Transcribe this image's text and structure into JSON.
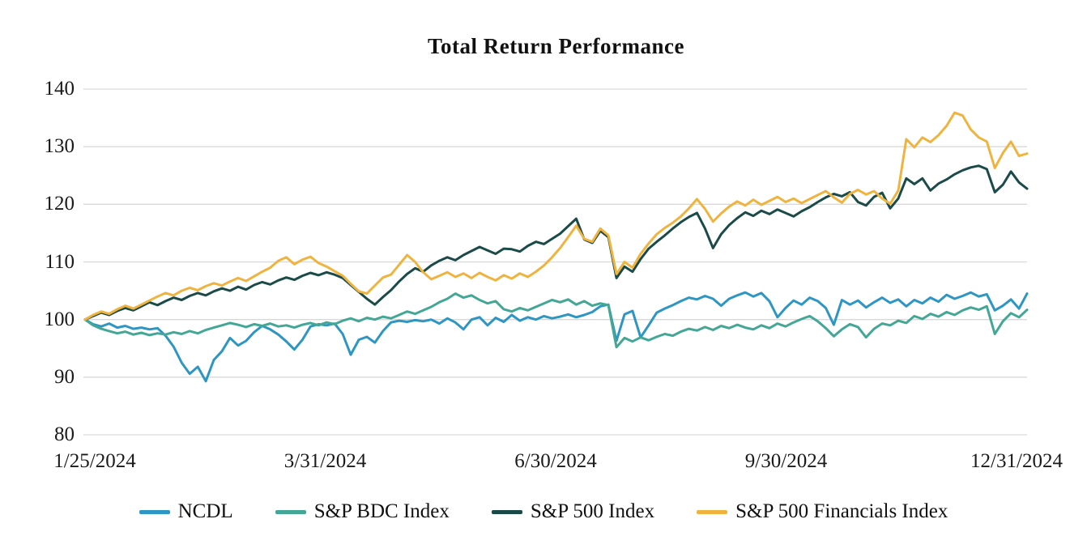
{
  "chart": {
    "background": "#ffffff",
    "gridline_color": "#d9d9d9",
    "text_color": "#1a1a1a"
  },
  "chart_data": {
    "type": "line",
    "title": "Total Return Performance",
    "xlabel": "",
    "ylabel": "",
    "ylim": [
      80,
      140
    ],
    "y_ticks": [
      80,
      90,
      100,
      110,
      120,
      130,
      140
    ],
    "x_tick_labels": [
      "1/25/2024",
      "3/31/2024",
      "6/30/2024",
      "9/30/2024",
      "12/31/2024"
    ],
    "grid": "horizontal",
    "legend_position": "bottom",
    "base_value": 100,
    "series": [
      {
        "name": "NCDL",
        "color": "#2E96C2",
        "values": [
          100,
          99.2,
          98.8,
          99.3,
          98.6,
          98.9,
          98.4,
          98.6,
          98.3,
          98.5,
          97.2,
          95.3,
          92.5,
          90.6,
          91.8,
          89.3,
          93.0,
          94.5,
          96.8,
          95.5,
          96.3,
          97.8,
          98.9,
          98.3,
          97.4,
          96.2,
          94.8,
          96.5,
          98.8,
          99.2,
          99.0,
          99.3,
          97.5,
          93.9,
          96.5,
          97.0,
          96.0,
          98.0,
          99.5,
          99.8,
          99.6,
          99.9,
          99.7,
          100.0,
          99.3,
          100.2,
          99.5,
          98.3,
          100.0,
          100.4,
          99.0,
          100.3,
          99.6,
          100.8,
          99.8,
          100.4,
          100.0,
          100.6,
          100.2,
          100.5,
          100.9,
          100.4,
          100.8,
          101.3,
          102.3,
          102.6,
          96.3,
          100.9,
          101.5,
          96.9,
          99.0,
          101.2,
          101.9,
          102.5,
          103.2,
          103.8,
          103.5,
          104.1,
          103.6,
          102.4,
          103.6,
          104.2,
          104.7,
          104.0,
          104.6,
          103.2,
          100.4,
          102.0,
          103.3,
          102.6,
          103.8,
          103.2,
          102.0,
          99.1,
          103.4,
          102.6,
          103.3,
          102.1,
          103.0,
          103.8,
          102.9,
          103.5,
          102.3,
          103.4,
          102.8,
          103.8,
          103.1,
          104.3,
          103.6,
          104.1,
          104.7,
          104.0,
          104.4,
          101.6,
          102.4,
          103.5,
          101.9,
          104.5
        ]
      },
      {
        "name": "S&P BDC Index",
        "color": "#44A795",
        "values": [
          100,
          99.0,
          98.4,
          98.0,
          97.6,
          97.9,
          97.4,
          97.7,
          97.3,
          97.6,
          97.4,
          97.8,
          97.5,
          98.0,
          97.6,
          98.2,
          98.6,
          99.0,
          99.4,
          99.1,
          98.7,
          99.2,
          98.9,
          99.3,
          98.8,
          99.0,
          98.6,
          99.1,
          99.4,
          99.0,
          99.5,
          99.2,
          99.8,
          100.2,
          99.7,
          100.3,
          100.0,
          100.5,
          100.2,
          100.8,
          101.4,
          101.0,
          101.6,
          102.2,
          103.0,
          103.6,
          104.5,
          103.8,
          104.2,
          103.4,
          102.8,
          103.2,
          101.8,
          101.4,
          102.0,
          101.6,
          102.2,
          102.8,
          103.4,
          103.0,
          103.5,
          102.6,
          103.2,
          102.4,
          102.8,
          102.5,
          95.2,
          96.8,
          96.2,
          96.9,
          96.4,
          97.0,
          97.5,
          97.2,
          97.9,
          98.4,
          98.1,
          98.7,
          98.2,
          98.9,
          98.5,
          99.1,
          98.6,
          98.3,
          99.0,
          98.5,
          99.3,
          98.8,
          99.5,
          100.1,
          100.6,
          99.7,
          98.5,
          97.1,
          98.3,
          99.2,
          98.7,
          96.9,
          98.4,
          99.3,
          99.0,
          99.8,
          99.4,
          100.6,
          100.1,
          101.0,
          100.5,
          101.3,
          100.8,
          101.6,
          102.1,
          101.7,
          102.3,
          97.5,
          99.7,
          101.1,
          100.4,
          101.7
        ]
      },
      {
        "name": "S&P 500 Index",
        "color": "#1B4B48",
        "values": [
          100,
          100.6,
          101.2,
          100.8,
          101.5,
          102.0,
          101.6,
          102.3,
          103.0,
          102.5,
          103.2,
          103.8,
          103.4,
          104.1,
          104.6,
          104.2,
          104.9,
          105.4,
          105.0,
          105.7,
          105.2,
          106.0,
          106.5,
          106.1,
          106.8,
          107.3,
          106.9,
          107.6,
          108.1,
          107.7,
          108.2,
          107.8,
          107.2,
          106.0,
          104.8,
          103.6,
          102.6,
          103.9,
          105.1,
          106.6,
          107.9,
          108.9,
          108.3,
          109.4,
          110.2,
          110.8,
          110.3,
          111.2,
          111.9,
          112.6,
          112.0,
          111.4,
          112.3,
          112.2,
          111.8,
          112.8,
          113.5,
          113.1,
          114.0,
          114.9,
          116.2,
          117.5,
          113.9,
          113.3,
          115.4,
          114.3,
          107.2,
          109.2,
          108.3,
          110.5,
          112.3,
          113.5,
          114.6,
          115.8,
          116.9,
          117.8,
          118.5,
          115.8,
          112.4,
          114.8,
          116.4,
          117.6,
          118.6,
          118.0,
          118.9,
          118.3,
          119.1,
          118.5,
          117.9,
          118.8,
          119.5,
          120.4,
          121.2,
          121.8,
          121.4,
          122.1,
          120.4,
          119.8,
          121.3,
          122.0,
          119.3,
          121.0,
          124.5,
          123.5,
          124.5,
          122.4,
          123.6,
          124.3,
          125.2,
          125.9,
          126.4,
          126.7,
          126.1,
          122.1,
          123.4,
          125.7,
          123.8,
          122.7
        ]
      },
      {
        "name": "S&P 500 Financials Index",
        "color": "#EFB440",
        "values": [
          100,
          100.8,
          101.4,
          101.0,
          101.8,
          102.4,
          101.9,
          102.6,
          103.3,
          104.0,
          104.6,
          104.2,
          105.0,
          105.5,
          105.1,
          105.8,
          106.3,
          105.9,
          106.6,
          107.2,
          106.7,
          107.5,
          108.3,
          109.0,
          110.2,
          110.8,
          109.6,
          110.4,
          110.9,
          109.8,
          109.2,
          108.4,
          107.6,
          106.2,
          104.9,
          104.5,
          105.9,
          107.3,
          107.8,
          109.5,
          111.2,
          110.0,
          108.2,
          107.0,
          107.6,
          108.2,
          107.4,
          108.0,
          107.2,
          108.1,
          107.4,
          106.8,
          107.7,
          107.1,
          108.0,
          107.4,
          108.3,
          109.4,
          110.8,
          112.4,
          114.3,
          116.3,
          114.0,
          113.5,
          115.8,
          114.6,
          107.9,
          110.0,
          109.0,
          111.4,
          113.2,
          114.8,
          115.9,
          116.8,
          117.9,
          119.3,
          120.9,
          119.2,
          117.0,
          118.4,
          119.6,
          120.5,
          119.8,
          120.8,
          119.9,
          120.6,
          121.3,
          120.4,
          121.0,
          120.2,
          120.9,
          121.6,
          122.3,
          121.2,
          120.3,
          121.8,
          122.5,
          121.7,
          122.3,
          121.0,
          120.1,
          122.4,
          131.3,
          129.9,
          131.6,
          130.8,
          132.0,
          133.6,
          135.9,
          135.4,
          133.0,
          131.6,
          130.9,
          126.3,
          128.9,
          130.9,
          128.4,
          128.8
        ]
      }
    ]
  }
}
